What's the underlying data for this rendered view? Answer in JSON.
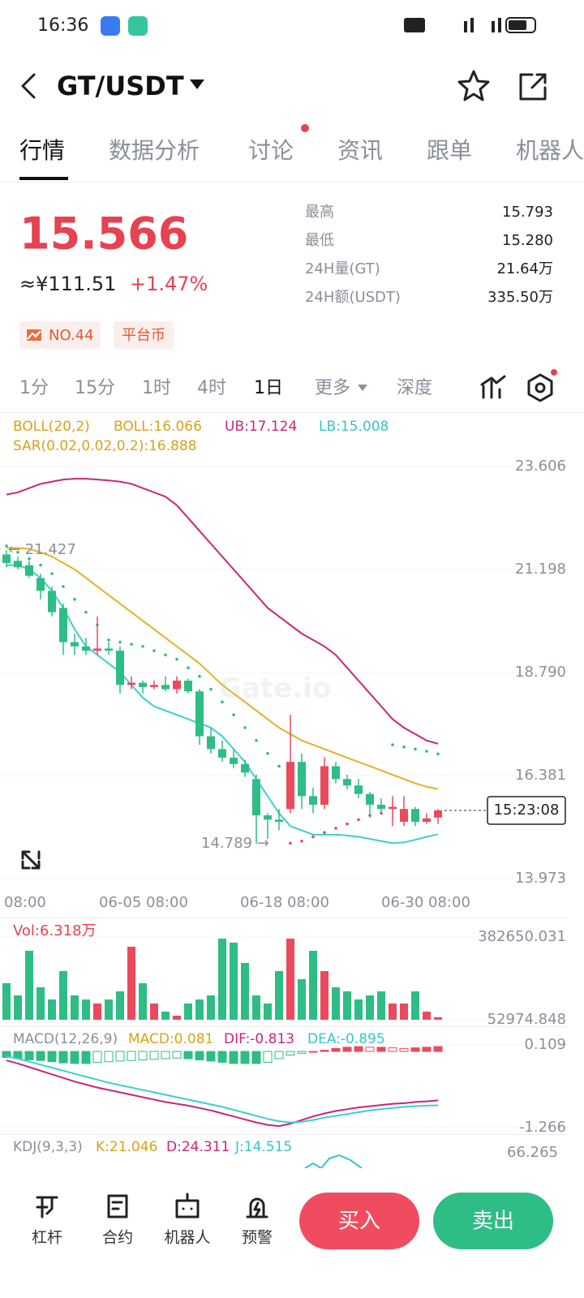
{
  "status": {
    "time": "16:36"
  },
  "header": {
    "pair": "GT/USDT"
  },
  "tabs": [
    "行情",
    "数据分析",
    "讨论",
    "资讯",
    "跟单",
    "机器人"
  ],
  "price": {
    "last": "15.566",
    "cny": "≈¥111.51",
    "change": "+1.47%"
  },
  "stats": [
    {
      "label": "最高",
      "value": "15.793"
    },
    {
      "label": "最低",
      "value": "15.280"
    },
    {
      "label": "24H量(GT)",
      "value": "21.64万"
    },
    {
      "label": "24H额(USDT)",
      "value": "335.50万"
    }
  ],
  "tags": [
    "NO.44",
    "平台币"
  ],
  "intervals": [
    "1分",
    "15分",
    "1时",
    "4时",
    "1日",
    "更多",
    "深度"
  ],
  "indicators": {
    "boll": "BOLL(20,2)",
    "boll_mid": "BOLL:16.066",
    "ub": "UB:17.124",
    "lb": "LB:15.008",
    "sar": "SAR(0.02,0.02,0.2):16.888"
  },
  "price_chart": {
    "ylim": [
      13.973,
      23.606
    ],
    "yticks": [
      23.606,
      21.198,
      {
        "value": 18.79,
        "label": "18.790"
      },
      16.381,
      13.973
    ],
    "x_labels": [
      "08:00",
      "06-05 08:00",
      "06-18 08:00",
      "06-30 08:00"
    ],
    "high_note": "← 21.427",
    "low_note": "14.789 →",
    "countdown": "15:23:08",
    "candles": [
      [
        21.55,
        21.65,
        21.25,
        21.35
      ],
      [
        21.4,
        21.5,
        21.2,
        21.25
      ],
      [
        21.3,
        21.4,
        21.0,
        21.05
      ],
      [
        21.0,
        21.1,
        20.5,
        20.7
      ],
      [
        20.7,
        20.8,
        20.1,
        20.2
      ],
      [
        20.3,
        20.4,
        19.2,
        19.5
      ],
      [
        19.5,
        19.7,
        19.2,
        19.4
      ],
      [
        19.4,
        19.6,
        19.2,
        19.3
      ],
      [
        19.3,
        20.1,
        19.2,
        19.35
      ],
      [
        19.35,
        19.5,
        19.2,
        19.3
      ],
      [
        19.3,
        19.4,
        18.3,
        18.5
      ],
      [
        18.5,
        18.7,
        18.4,
        18.55
      ],
      [
        18.55,
        18.6,
        18.3,
        18.45
      ],
      [
        18.45,
        18.6,
        18.4,
        18.5
      ],
      [
        18.5,
        18.7,
        18.35,
        18.4
      ],
      [
        18.4,
        18.7,
        18.3,
        18.6
      ],
      [
        18.6,
        18.65,
        18.3,
        18.35
      ],
      [
        18.35,
        18.4,
        17.1,
        17.3
      ],
      [
        17.3,
        17.5,
        16.9,
        17.0
      ],
      [
        17.0,
        17.2,
        16.7,
        16.8
      ],
      [
        16.8,
        17.0,
        16.55,
        16.65
      ],
      [
        16.65,
        16.75,
        16.35,
        16.45
      ],
      [
        16.3,
        16.4,
        14.79,
        15.45
      ],
      [
        15.45,
        15.5,
        14.9,
        15.35
      ],
      [
        15.35,
        15.6,
        15.1,
        15.3
      ],
      [
        15.6,
        17.8,
        15.5,
        16.7
      ],
      [
        16.7,
        16.9,
        15.6,
        15.9
      ],
      [
        15.9,
        16.1,
        15.5,
        15.7
      ],
      [
        15.7,
        16.8,
        15.6,
        16.6
      ],
      [
        16.6,
        16.7,
        16.2,
        16.3
      ],
      [
        16.3,
        16.4,
        16.05,
        16.15
      ],
      [
        16.15,
        16.3,
        15.85,
        15.95
      ],
      [
        15.95,
        16.0,
        15.4,
        15.7
      ],
      [
        15.7,
        15.85,
        15.5,
        15.6
      ],
      [
        15.6,
        15.9,
        15.2,
        15.65
      ],
      [
        15.3,
        15.9,
        15.2,
        15.6
      ],
      [
        15.6,
        15.65,
        15.2,
        15.3
      ],
      [
        15.3,
        15.5,
        15.25,
        15.38
      ],
      [
        15.4,
        15.6,
        15.25,
        15.566
      ]
    ],
    "boll_upper": [
      22.95,
      23.0,
      23.1,
      23.2,
      23.25,
      23.3,
      23.32,
      23.32,
      23.3,
      23.28,
      23.25,
      23.2,
      23.1,
      23.0,
      22.9,
      22.7,
      22.4,
      22.1,
      21.8,
      21.5,
      21.2,
      20.9,
      20.6,
      20.3,
      20.1,
      19.9,
      19.7,
      19.55,
      19.4,
      19.2,
      18.9,
      18.6,
      18.3,
      18.0,
      17.7,
      17.5,
      17.35,
      17.2,
      17.124
    ],
    "boll_mid": [
      21.7,
      21.7,
      21.68,
      21.6,
      21.5,
      21.35,
      21.2,
      21.0,
      20.8,
      20.6,
      20.4,
      20.2,
      20.0,
      19.8,
      19.6,
      19.4,
      19.2,
      19.0,
      18.75,
      18.5,
      18.3,
      18.1,
      17.9,
      17.7,
      17.5,
      17.35,
      17.2,
      17.1,
      17.0,
      16.9,
      16.8,
      16.7,
      16.6,
      16.5,
      16.4,
      16.3,
      16.2,
      16.12,
      16.066
    ],
    "boll_lower": [
      21.3,
      21.3,
      21.2,
      21.0,
      20.7,
      20.3,
      19.8,
      19.4,
      19.2,
      19.0,
      18.8,
      18.5,
      18.2,
      18.0,
      17.9,
      17.8,
      17.7,
      17.6,
      17.5,
      17.3,
      17.0,
      16.7,
      16.3,
      15.9,
      15.5,
      15.2,
      15.1,
      15.0,
      15.0,
      15.0,
      14.98,
      14.95,
      14.9,
      14.85,
      14.8,
      14.82,
      14.88,
      14.95,
      15.008
    ],
    "sar": [
      21.75,
      21.6,
      21.45,
      21.3,
      21.1,
      20.8,
      20.5,
      20.2,
      19.9,
      19.55,
      19.5,
      19.45,
      19.4,
      19.3,
      19.2,
      19.1,
      18.9,
      18.7,
      18.4,
      18.1,
      17.8,
      17.5,
      17.2,
      16.9,
      16.6,
      14.8,
      14.85,
      14.95,
      15.05,
      15.15,
      15.25,
      15.35,
      15.45,
      15.5,
      17.1,
      17.05,
      17.0,
      16.95,
      16.888
    ]
  },
  "volume_chart": {
    "label": "Vol:6.318万",
    "ylim": [
      52974.848,
      382650.031
    ],
    "yticks": [
      382650.031,
      52974.848
    ],
    "values": [
      198415,
      149935,
      327695,
      182255,
      133775,
      246895,
      149935,
      133775,
      117615,
      133775,
      166095,
      343855,
      198415,
      117615,
      85295,
      69135,
      117615,
      133775,
      149935,
      376175,
      360015,
      279215,
      149935,
      117615,
      246895,
      376175,
      214575,
      327695,
      246895,
      182255,
      166095,
      133775,
      149935,
      166095,
      117615,
      117615,
      166095,
      85295,
      63180
    ]
  },
  "macd_chart": {
    "label": "MACD(12,26,9)",
    "macd": "MACD:0.081",
    "dif": "DIF:-0.813",
    "dea": "DEA:-0.895",
    "ylim": [
      -1.266,
      0.109
    ],
    "yticks": [
      0.109,
      -1.266
    ],
    "hist": [
      -0.1,
      -0.12,
      -0.14,
      -0.15,
      -0.17,
      -0.19,
      -0.2,
      -0.2,
      -0.18,
      -0.17,
      -0.16,
      -0.15,
      -0.14,
      -0.13,
      -0.12,
      -0.11,
      -0.12,
      -0.14,
      -0.16,
      -0.18,
      -0.2,
      -0.2,
      -0.2,
      -0.18,
      -0.12,
      -0.06,
      -0.03,
      0.0,
      0.02,
      0.05,
      0.07,
      0.08,
      0.07,
      0.07,
      0.06,
      0.05,
      0.06,
      0.07,
      0.081
    ],
    "dif_line": [
      -0.15,
      -0.2,
      -0.26,
      -0.32,
      -0.38,
      -0.44,
      -0.5,
      -0.55,
      -0.6,
      -0.64,
      -0.68,
      -0.72,
      -0.76,
      -0.8,
      -0.84,
      -0.87,
      -0.9,
      -0.94,
      -0.98,
      -1.03,
      -1.08,
      -1.13,
      -1.18,
      -1.22,
      -1.24,
      -1.2,
      -1.14,
      -1.08,
      -1.03,
      -0.99,
      -0.96,
      -0.93,
      -0.91,
      -0.89,
      -0.87,
      -0.86,
      -0.84,
      -0.83,
      -0.813
    ],
    "dea_line": [
      -0.08,
      -0.12,
      -0.17,
      -0.22,
      -0.27,
      -0.32,
      -0.37,
      -0.42,
      -0.47,
      -0.52,
      -0.56,
      -0.6,
      -0.64,
      -0.68,
      -0.72,
      -0.76,
      -0.8,
      -0.84,
      -0.88,
      -0.92,
      -0.97,
      -1.02,
      -1.07,
      -1.12,
      -1.16,
      -1.18,
      -1.17,
      -1.14,
      -1.1,
      -1.07,
      -1.04,
      -1.01,
      -0.98,
      -0.96,
      -0.94,
      -0.92,
      -0.91,
      -0.9,
      -0.895
    ]
  },
  "kdj": {
    "label": "KDJ(9,3,3)",
    "k": "K:21.046",
    "d": "D:24.311",
    "j": "J:14.515",
    "tick": "66.265"
  },
  "bottom_nav": [
    "杠杆",
    "合约",
    "机器人",
    "预警"
  ],
  "actions": {
    "buy": "买入",
    "sell": "卖出"
  }
}
